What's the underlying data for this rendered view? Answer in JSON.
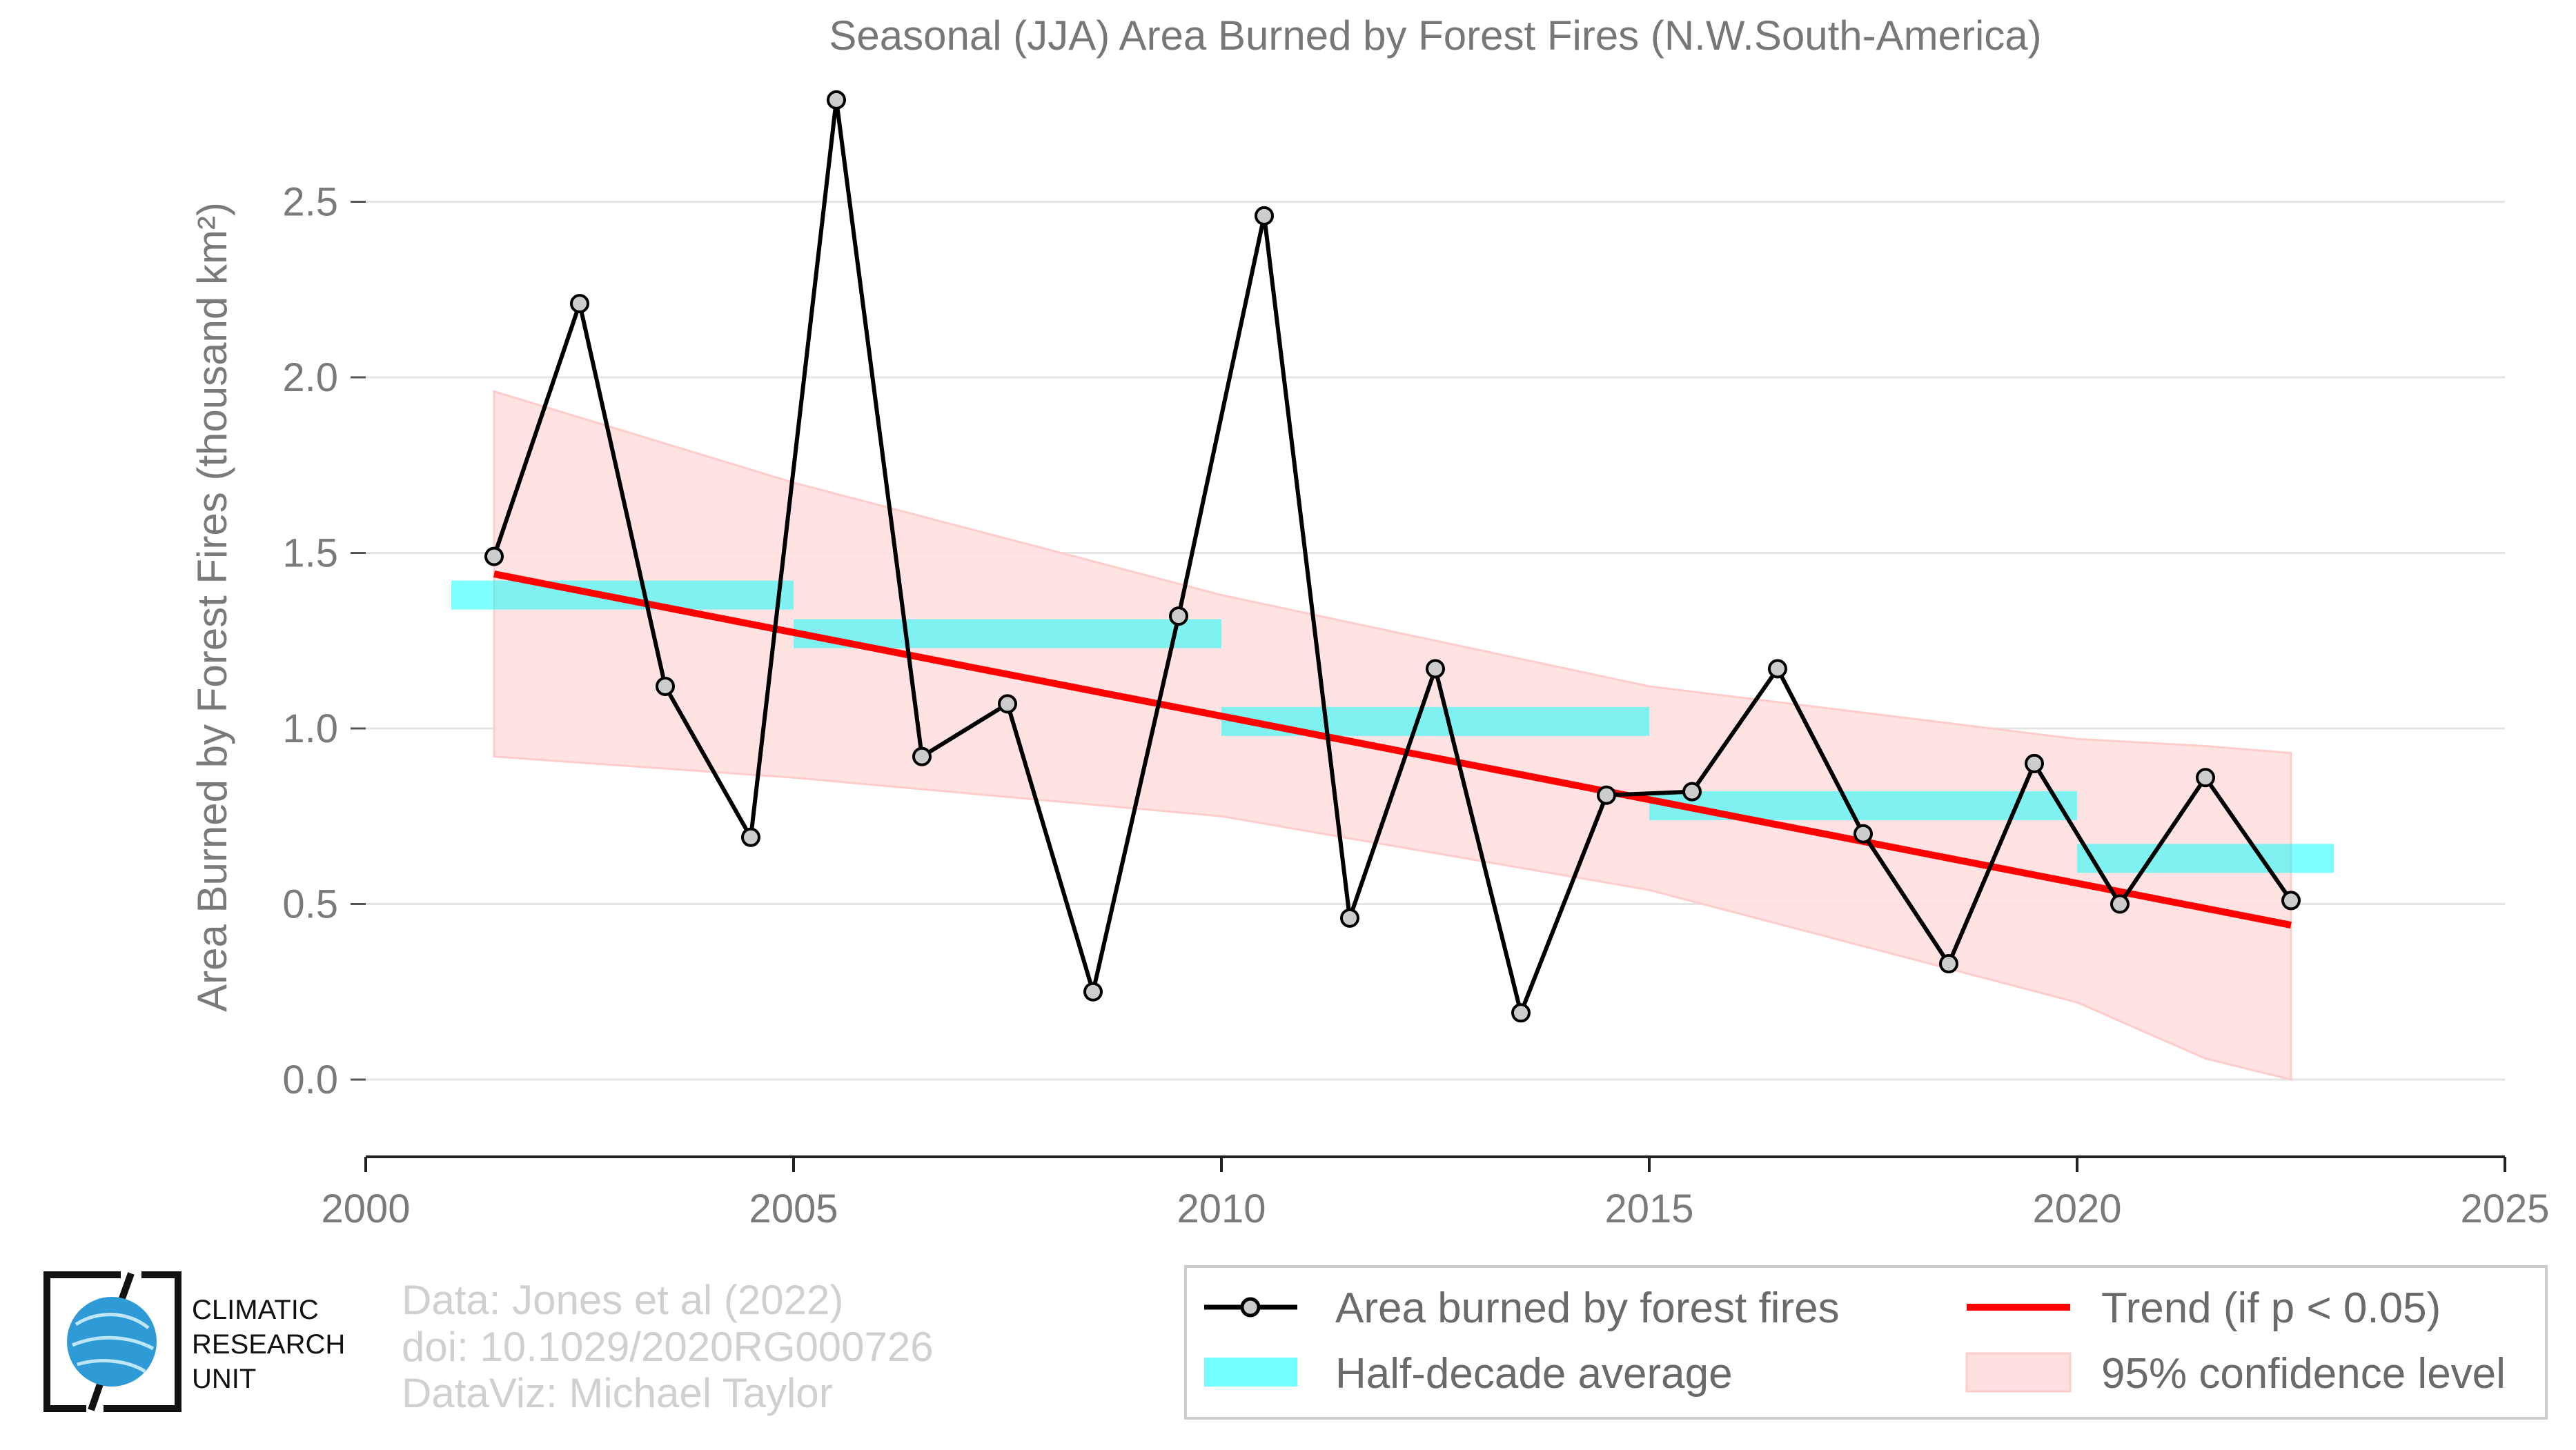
{
  "chart_data": {
    "type": "line",
    "title": "Seasonal (JJA) Area Burned by Forest Fires (N.W.South-America)",
    "xlabel": "",
    "ylabel": "Area Burned by Forest Fires (thousand km²)",
    "xlim": [
      2000,
      2025
    ],
    "ylim": [
      -0.22,
      2.78
    ],
    "x_ticks": [
      2000,
      2005,
      2010,
      2015,
      2020,
      2025
    ],
    "y_ticks": [
      0.0,
      0.5,
      1.0,
      1.5,
      2.0,
      2.5
    ],
    "y_tick_labels": [
      "0.0",
      "0.5",
      "1.0",
      "1.5",
      "2.0",
      "2.5"
    ],
    "grid": "horizontal",
    "legend_position": "bottom-right",
    "series": [
      {
        "name": "Area burned by forest fires",
        "type": "line",
        "color": "#000000",
        "marker_color": "#cccccc",
        "x": [
          2001.5,
          2002.5,
          2003.5,
          2004.5,
          2005.5,
          2006.5,
          2007.5,
          2008.5,
          2009.5,
          2010.5,
          2011.5,
          2012.5,
          2013.5,
          2014.5,
          2015.5,
          2016.5,
          2017.5,
          2018.5,
          2019.5,
          2020.5,
          2021.5,
          2022.5
        ],
        "values": [
          1.49,
          2.21,
          1.12,
          0.69,
          2.79,
          0.92,
          1.07,
          0.25,
          1.32,
          2.46,
          0.46,
          1.17,
          0.19,
          0.81,
          0.82,
          1.17,
          0.7,
          0.33,
          0.9,
          0.5,
          0.86,
          0.51
        ]
      },
      {
        "name": "Half-decade average",
        "type": "step-bar",
        "color": "#00ffff",
        "segments": [
          {
            "x0": 2001.0,
            "x1": 2005.0,
            "value": 1.38
          },
          {
            "x0": 2005.0,
            "x1": 2010.0,
            "value": 1.27
          },
          {
            "x0": 2010.0,
            "x1": 2015.0,
            "value": 1.02
          },
          {
            "x0": 2015.0,
            "x1": 2020.0,
            "value": 0.78
          },
          {
            "x0": 2020.0,
            "x1": 2023.0,
            "value": 0.63
          }
        ]
      },
      {
        "name": "Trend (if p < 0.05)",
        "type": "line",
        "color": "#ff0000",
        "x": [
          2001.5,
          2022.5
        ],
        "values": [
          1.44,
          0.44
        ]
      },
      {
        "name": "95% confidence level",
        "type": "area",
        "color": "#ffe0e0",
        "x": [
          2001.5,
          2005.0,
          2010.0,
          2015.0,
          2020.0,
          2021.5,
          2022.5
        ],
        "upper": [
          1.96,
          1.7,
          1.38,
          1.12,
          0.97,
          0.95,
          0.93
        ],
        "lower": [
          0.92,
          0.86,
          0.75,
          0.54,
          0.22,
          0.06,
          0.0
        ]
      }
    ]
  },
  "credits": {
    "line1": "Data: Jones et al (2022)",
    "line2": "doi: 10.1029/2020RG000726",
    "line3": "DataViz: Michael Taylor"
  },
  "logo": {
    "line1": "CLIMATIC",
    "line2": "RESEARCH",
    "line3": "UNIT",
    "icon": "globe-logo-icon",
    "color": "#2e9bd6"
  },
  "legend": {
    "items": [
      {
        "label": "Area burned by forest fires",
        "symbol": "line-marker"
      },
      {
        "label": "Trend (if p < 0.05)",
        "symbol": "red-line"
      },
      {
        "label": "Half-decade average",
        "symbol": "cyan-bar"
      },
      {
        "label": "95% confidence level",
        "symbol": "pink-patch"
      }
    ]
  }
}
